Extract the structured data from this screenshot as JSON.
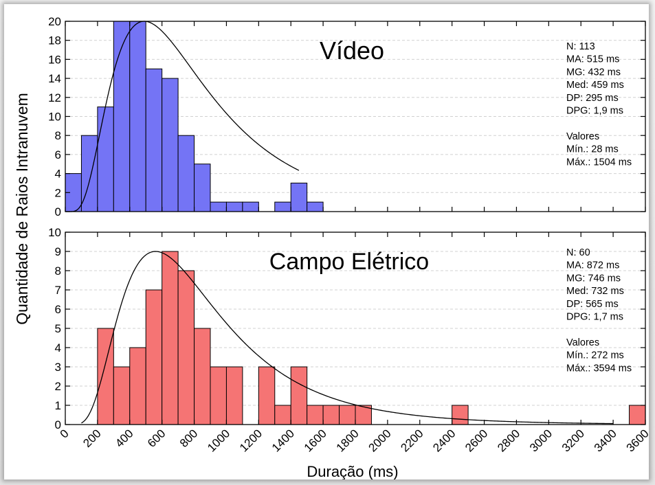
{
  "figure": {
    "ylabel": "Quantidade de Raios Intranuvem",
    "xlabel": "Duração (ms)"
  },
  "chart_data": [
    {
      "type": "bar",
      "title": "Vídeo",
      "bin_width": 100,
      "bins_start": [
        0,
        100,
        200,
        300,
        400,
        500,
        600,
        700,
        800,
        900,
        1000,
        1100,
        1200,
        1300,
        1400,
        1500
      ],
      "values": [
        4,
        8,
        11,
        20,
        20,
        15,
        14,
        8,
        5,
        1,
        1,
        1,
        0,
        1,
        3,
        1
      ],
      "xlim": [
        0,
        3600
      ],
      "ylim": [
        0,
        20
      ],
      "yticks": [
        0,
        2,
        4,
        6,
        8,
        10,
        12,
        14,
        16,
        18,
        20
      ],
      "color": "#7474f5",
      "curve": {
        "type": "lognormal-fit",
        "peak_x": 490,
        "peak_y": 20,
        "sigma": 0.62,
        "x_start": 0,
        "x_end": 1450
      },
      "stats": [
        "N: 113",
        "MA: 515 ms",
        "MG: 432 ms",
        "Med: 459 ms",
        "DP: 295 ms",
        "DPG: 1,9 ms",
        "",
        "Valores",
        "Mín.: 28 ms",
        "Máx.: 1504 ms"
      ]
    },
    {
      "type": "bar",
      "title": "Campo Elétrico",
      "bin_width": 100,
      "bins_start": [
        200,
        300,
        400,
        500,
        600,
        700,
        800,
        900,
        1000,
        1100,
        1200,
        1300,
        1400,
        1500,
        1600,
        1700,
        1800,
        1900,
        2000,
        2100,
        2200,
        2300,
        2400,
        2500,
        2600,
        2700,
        2800,
        2900,
        3000,
        3100,
        3200,
        3300,
        3400,
        3500
      ],
      "values": [
        5,
        3,
        4,
        7,
        9,
        8,
        5,
        3,
        3,
        0,
        3,
        1,
        3,
        1,
        1,
        1,
        1,
        0,
        0,
        0,
        0,
        0,
        1,
        0,
        0,
        0,
        0,
        0,
        0,
        0,
        0,
        0,
        0,
        1
      ],
      "xlim": [
        0,
        3600
      ],
      "ylim": [
        0,
        10
      ],
      "yticks": [
        0,
        1,
        2,
        3,
        4,
        5,
        6,
        7,
        8,
        9,
        10
      ],
      "color": "#f57474",
      "curve": {
        "type": "lognormal-fit",
        "peak_x": 560,
        "peak_y": 9,
        "sigma": 0.56,
        "x_start": 100,
        "x_end": 3400
      },
      "stats": [
        "N: 60",
        "MA: 872 ms",
        "MG: 746 ms",
        "Med: 732 ms",
        "DP: 565 ms",
        "DPG: 1,7 ms",
        "",
        "Valores",
        "Mín.: 272 ms",
        "Máx.: 3594 ms"
      ]
    }
  ],
  "xticks": [
    0,
    200,
    400,
    600,
    800,
    1000,
    1200,
    1400,
    1600,
    1800,
    2000,
    2200,
    2400,
    2600,
    2800,
    3000,
    3200,
    3400,
    3600
  ]
}
